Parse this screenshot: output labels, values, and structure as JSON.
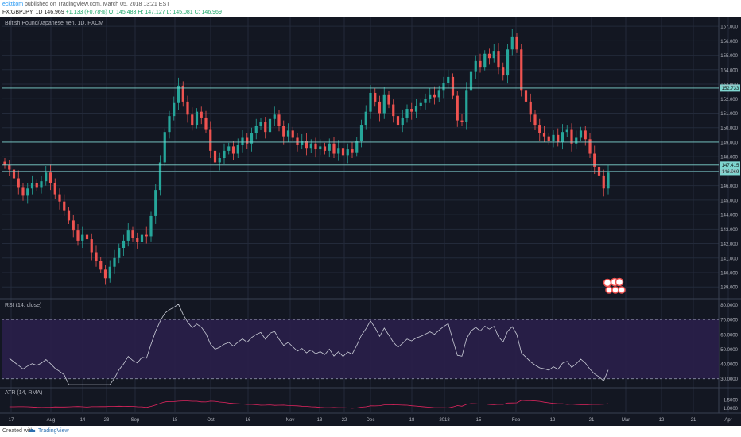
{
  "header": {
    "author": "ecktkom",
    "published_text": "published on TradingView.com, March 05, 2018 13:21 EST",
    "symbol": "FX:GBPJPY, 1D",
    "last": "146.969",
    "change": "+1.133 (+0.78%)",
    "ohlc": "O: 145.483 H: 147.127 L: 145.081 C: 146.969"
  },
  "footer": {
    "created_label": "Created with",
    "brand": "TradingView"
  },
  "colors": {
    "background": "#131722",
    "grid": "#232a3a",
    "candle_up": "#26a69a",
    "candle_down": "#ef5350",
    "level_line": "#7fd6d0",
    "rsi_band": "#2a1f4a",
    "rsi_line": "#c9ccd6",
    "atr_line": "#e0245e",
    "axis_text": "#b2b5be"
  },
  "chart_data": [
    {
      "type": "candlestick",
      "title": "British Pound/Japanese Yen, 1D, FXCM",
      "x_ticks": [
        "17",
        "Aug",
        "14",
        "23",
        "Sep",
        "18",
        "Oct",
        "16",
        "Nov",
        "13",
        "22",
        "Dec",
        "18",
        "2018",
        "15",
        "Feb",
        "12",
        "21",
        "Mar",
        "12",
        "21",
        "Apr",
        "16"
      ],
      "y_ticks": [
        "157.000",
        "156.000",
        "155.000",
        "154.000",
        "153.000",
        "152.000",
        "151.000",
        "150.000",
        "149.000",
        "148.000",
        "147.000",
        "146.000",
        "145.000",
        "144.000",
        "143.000",
        "142.000",
        "141.000",
        "140.000",
        "139.000"
      ],
      "ylim": [
        138.3,
        157.5
      ],
      "price_labels": [
        "152.733",
        "147.415",
        "146.969"
      ],
      "levels": [
        152.733,
        149.0,
        147.415,
        146.969
      ],
      "close": [
        147.4,
        147.1,
        146.5,
        145.9,
        145.3,
        145.8,
        146.2,
        145.9,
        146.3,
        146.9,
        146.2,
        145.4,
        144.9,
        144.3,
        143.6,
        142.9,
        142.2,
        142.6,
        142.3,
        141.4,
        140.8,
        140.2,
        139.6,
        140.4,
        141.0,
        141.7,
        142.2,
        142.9,
        142.4,
        142.1,
        142.6,
        142.5,
        143.9,
        145.7,
        147.6,
        149.7,
        150.8,
        151.7,
        152.9,
        151.8,
        150.9,
        150.2,
        151.1,
        150.7,
        149.9,
        148.4,
        147.6,
        147.9,
        148.4,
        148.7,
        148.2,
        148.8,
        149.3,
        148.9,
        149.6,
        150.1,
        150.4,
        149.7,
        150.6,
        150.9,
        150.1,
        149.4,
        149.8,
        149.3,
        148.8,
        149.1,
        148.6,
        148.9,
        148.5,
        148.7,
        148.4,
        148.9,
        148.2,
        148.6,
        148.1,
        148.5,
        148.3,
        149.1,
        150.2,
        151.1,
        152.4,
        151.8,
        151.0,
        152.3,
        151.6,
        150.8,
        150.2,
        150.7,
        151.3,
        151.1,
        151.5,
        151.7,
        152.0,
        152.3,
        152.1,
        152.6,
        153.1,
        153.5,
        152.2,
        150.5,
        150.4,
        152.6,
        153.9,
        154.6,
        154.2,
        155.1,
        154.8,
        155.3,
        154.2,
        153.6,
        155.4,
        156.3,
        155.4,
        152.6,
        151.8,
        150.9,
        150.2,
        149.6,
        149.4,
        149.1,
        149.5,
        149.0,
        149.7,
        149.9,
        148.9,
        149.3,
        149.8,
        149.2,
        148.2,
        147.3,
        146.7,
        145.8,
        146.9
      ],
      "rsi": {
        "label": "RSI (14, close)",
        "y_ticks": [
          "80.0000",
          "70.0000",
          "60.0000",
          "50.0000",
          "40.0000",
          "30.0000"
        ],
        "ylim": [
          25,
          83
        ],
        "upper": 70,
        "lower": 30
      },
      "atr": {
        "label": "ATR (14, RMA)",
        "y_ticks": [
          "1.5000",
          "1.0000"
        ],
        "ylim": [
          0.8,
          2.1
        ]
      }
    }
  ]
}
